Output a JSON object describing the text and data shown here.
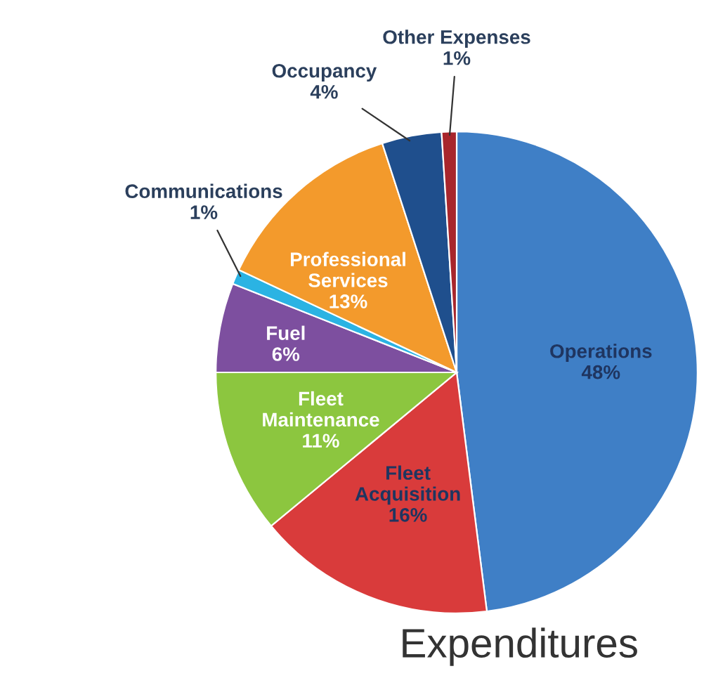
{
  "chart_data": {
    "type": "pie",
    "title": "Expenditures",
    "categories": [
      "Operations",
      "Fleet\nAcquisition",
      "Fleet\nMaintenance",
      "Fuel",
      "Communications",
      "Professional\nServices",
      "Occupancy",
      "Other Expenses"
    ],
    "values": [
      48,
      16,
      11,
      6,
      1,
      13,
      4,
      1
    ],
    "value_labels": [
      "48%",
      "16%",
      "11%",
      "6%",
      "1%",
      "13%",
      "4%",
      "1%"
    ],
    "colors": [
      "#3f7fc6",
      "#d93b3b",
      "#8cc63f",
      "#7d4f9f",
      "#2bb3e3",
      "#f39a2c",
      "#1f4f8d",
      "#a8262c"
    ],
    "legend": false
  }
}
